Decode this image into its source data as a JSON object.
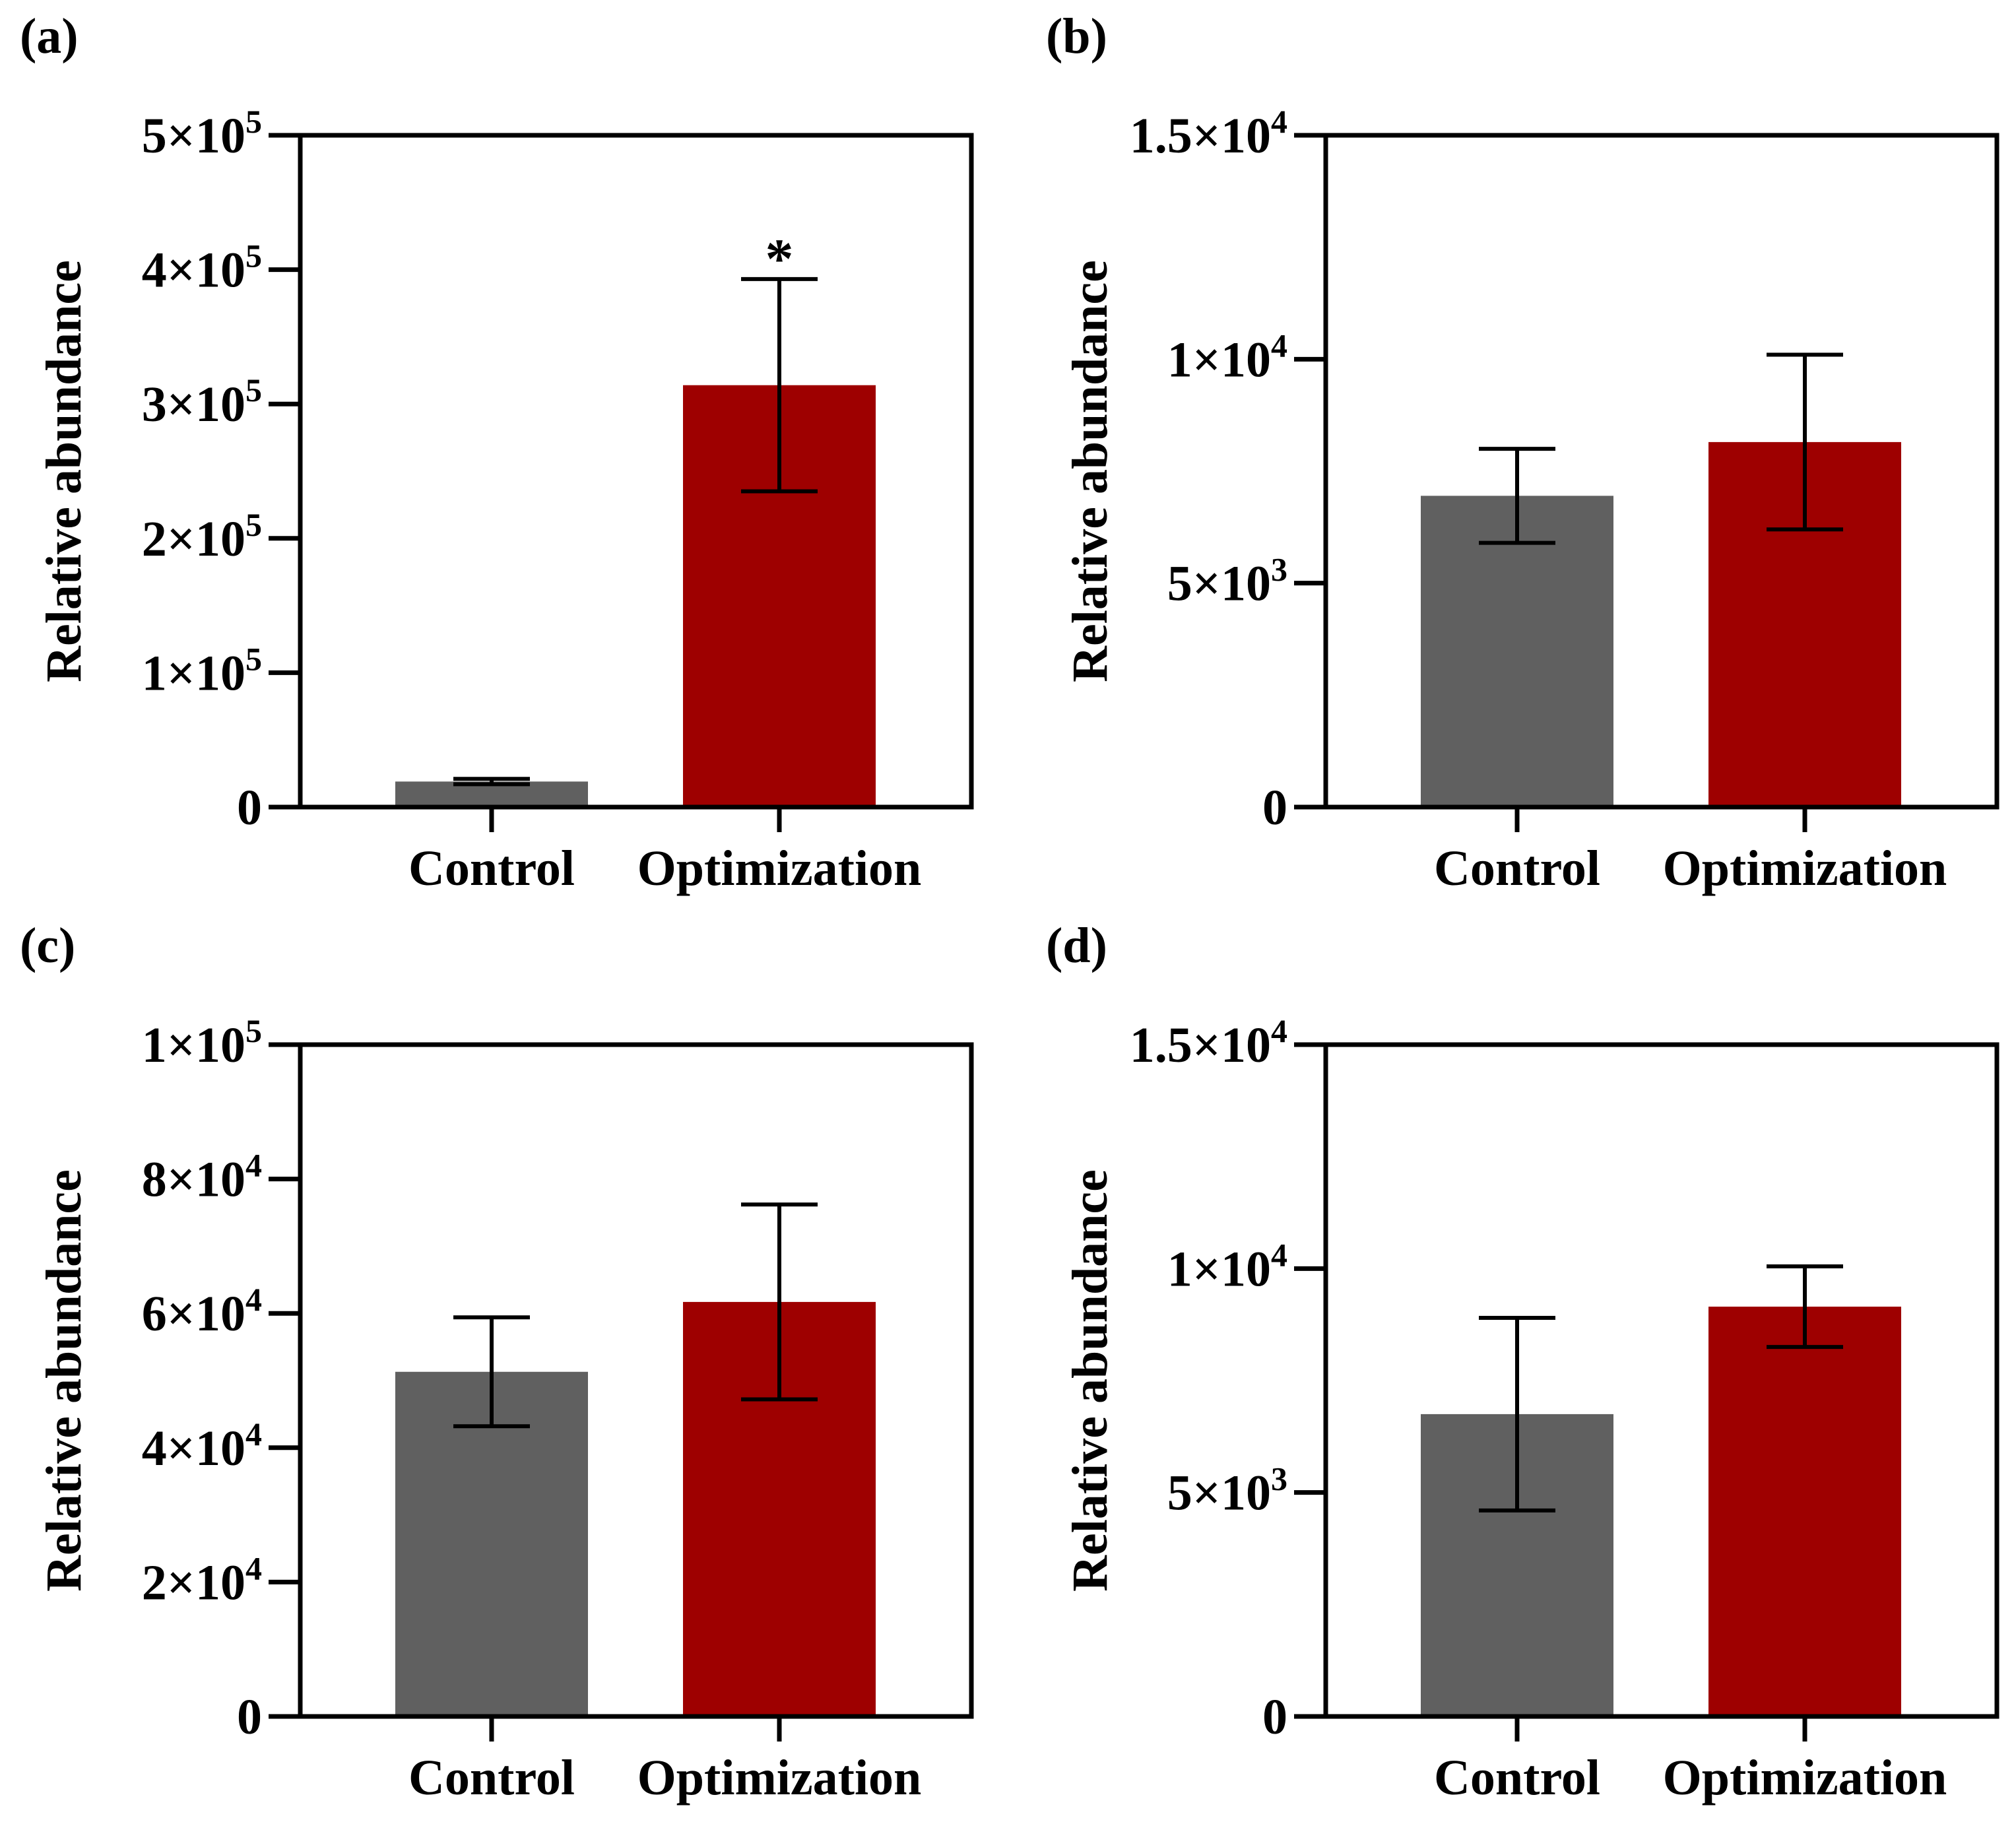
{
  "colors": {
    "control": "#606060",
    "optimization": "#9e0000",
    "axis": "#000000"
  },
  "chart_data": [
    {
      "type": "bar",
      "panel_label": "(a)",
      "ylabel": "Relative abundance",
      "categories": [
        "Control",
        "Optimization"
      ],
      "values": [
        19000,
        314000
      ],
      "errors": [
        2000,
        79000
      ],
      "ylim": [
        0,
        500000
      ],
      "yticks": [
        0,
        100000,
        200000,
        300000,
        400000,
        500000
      ],
      "ytick_labels": [
        [
          "0",
          ""
        ],
        [
          "1×10",
          "5"
        ],
        [
          "2×10",
          "5"
        ],
        [
          "3×10",
          "5"
        ],
        [
          "4×10",
          "5"
        ],
        [
          "5×10",
          "5"
        ]
      ],
      "annotations": [
        {
          "category": "Optimization",
          "text": "*"
        }
      ],
      "grid": false,
      "legend": "none"
    },
    {
      "type": "bar",
      "panel_label": "(b)",
      "ylabel": "Relative abundance",
      "categories": [
        "Control",
        "Optimization"
      ],
      "values": [
        6950,
        8150
      ],
      "errors": [
        1050,
        1950
      ],
      "ylim": [
        0,
        15000
      ],
      "yticks": [
        0,
        5000,
        10000,
        15000
      ],
      "ytick_labels": [
        [
          "0",
          ""
        ],
        [
          "5×10",
          "3"
        ],
        [
          "1×10",
          "4"
        ],
        [
          "1.5×10",
          "4"
        ]
      ],
      "annotations": [],
      "grid": false,
      "legend": "none"
    },
    {
      "type": "bar",
      "panel_label": "(c)",
      "ylabel": "Relative abundance",
      "categories": [
        "Control",
        "Optimization"
      ],
      "values": [
        51300,
        61700
      ],
      "errors": [
        8100,
        14500
      ],
      "ylim": [
        0,
        100000
      ],
      "yticks": [
        0,
        20000,
        40000,
        60000,
        80000,
        100000
      ],
      "ytick_labels": [
        [
          "0",
          ""
        ],
        [
          "2×10",
          "4"
        ],
        [
          "4×10",
          "4"
        ],
        [
          "6×10",
          "4"
        ],
        [
          "8×10",
          "4"
        ],
        [
          "1×10",
          "5"
        ]
      ],
      "annotations": [],
      "grid": false,
      "legend": "none"
    },
    {
      "type": "bar",
      "panel_label": "(d)",
      "ylabel": "Relative abundance",
      "categories": [
        "Control",
        "Optimization"
      ],
      "values": [
        6750,
        9150
      ],
      "errors": [
        2150,
        900
      ],
      "ylim": [
        0,
        15000
      ],
      "yticks": [
        0,
        5000,
        10000,
        15000
      ],
      "ytick_labels": [
        [
          "0",
          ""
        ],
        [
          "5×10",
          "3"
        ],
        [
          "1×10",
          "4"
        ],
        [
          "1.5×10",
          "4"
        ]
      ],
      "annotations": [],
      "grid": false,
      "legend": "none"
    }
  ]
}
